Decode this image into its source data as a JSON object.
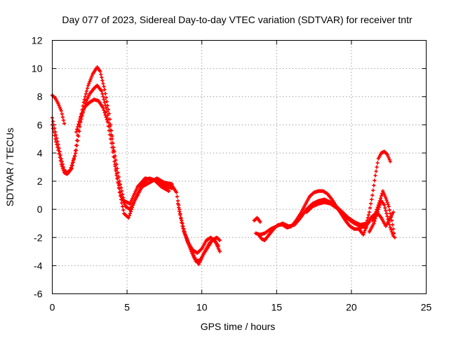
{
  "chart_data": {
    "type": "scatter",
    "title": "Day 077 of 2023, Sidereal Day-to-day VTEC variation (SDTVAR) for receiver tntr",
    "xlabel": "GPS time / hours",
    "ylabel": "SDTVAR / TECUs",
    "xlim": [
      0,
      25
    ],
    "ylim": [
      -6,
      12
    ],
    "xticks": [
      0,
      5,
      10,
      15,
      20,
      25
    ],
    "yticks": [
      -6,
      -4,
      -2,
      0,
      2,
      4,
      6,
      8,
      10,
      12
    ],
    "grid": true,
    "marker": "+",
    "color": "#ff0000",
    "series": [
      {
        "name": "trace-a",
        "x": [
          0.0,
          0.2,
          0.4,
          0.6,
          0.8,
          1.0,
          1.2,
          1.5,
          1.8,
          2.1,
          2.4,
          2.7,
          3.0,
          3.2,
          3.5,
          3.8,
          4.0,
          4.2,
          4.5,
          4.8,
          5.1,
          5.5,
          6.0,
          6.5,
          7.0,
          7.5,
          8.0
        ],
        "y": [
          6.5,
          5.5,
          4.6,
          3.6,
          2.8,
          2.6,
          2.8,
          3.8,
          6.0,
          7.6,
          8.8,
          9.6,
          10.1,
          9.8,
          8.5,
          6.8,
          5.2,
          3.2,
          1.2,
          -0.3,
          -0.6,
          0.6,
          1.8,
          2.2,
          2.0,
          1.7,
          1.5
        ]
      },
      {
        "name": "trace-b",
        "x": [
          0.0,
          0.2,
          0.4,
          0.6,
          0.8,
          1.0,
          1.3,
          1.6,
          1.9,
          2.2,
          2.5,
          2.8,
          3.0,
          3.3,
          3.6,
          3.9,
          4.2,
          4.5,
          4.8,
          5.2,
          5.7,
          6.2,
          6.8,
          7.3,
          7.8
        ],
        "y": [
          6.0,
          5.0,
          4.2,
          3.2,
          2.6,
          2.5,
          2.9,
          4.2,
          6.2,
          7.5,
          8.2,
          8.6,
          8.8,
          8.4,
          7.2,
          5.6,
          3.8,
          2.0,
          0.6,
          0.4,
          1.6,
          2.2,
          2.1,
          1.6,
          1.3
        ]
      },
      {
        "name": "trace-c",
        "x": [
          1.6,
          1.9,
          2.2,
          2.5,
          2.8,
          3.1,
          3.4,
          3.7,
          4.0,
          4.3,
          4.6,
          4.9,
          5.2,
          5.6,
          6.0,
          6.5,
          7.0,
          7.5,
          8.0
        ],
        "y": [
          5.5,
          6.6,
          7.3,
          7.6,
          7.8,
          7.7,
          7.2,
          6.2,
          4.4,
          2.4,
          1.0,
          0.2,
          0.0,
          0.8,
          1.6,
          1.9,
          2.2,
          1.9,
          1.8
        ]
      },
      {
        "name": "trace-d",
        "x": [
          0.0,
          0.2,
          0.4,
          0.6,
          0.8
        ],
        "y": [
          8.1,
          7.9,
          7.5,
          7.0,
          6.1
        ]
      },
      {
        "name": "trace-e",
        "x": [
          8.0,
          8.3,
          8.6,
          8.9,
          9.2,
          9.5,
          9.8,
          10.1,
          10.4,
          10.7,
          11.0,
          11.2
        ],
        "y": [
          1.7,
          1.2,
          -0.6,
          -1.8,
          -2.6,
          -3.4,
          -3.9,
          -3.2,
          -2.7,
          -2.2,
          -2.0,
          -2.2
        ]
      },
      {
        "name": "trace-f",
        "x": [
          8.4,
          8.7,
          9.0,
          9.3,
          9.6,
          9.9,
          10.2,
          10.5,
          10.8,
          11.1
        ],
        "y": [
          0.4,
          -1.2,
          -2.2,
          -3.0,
          -3.7,
          -3.6,
          -3.0,
          -2.4,
          -2.1,
          -2.6
        ]
      },
      {
        "name": "trace-g",
        "x": [
          8.8,
          9.1,
          9.4,
          9.7,
          10.0,
          10.3,
          10.6,
          10.9,
          11.2
        ],
        "y": [
          -1.6,
          -2.4,
          -2.9,
          -3.1,
          -2.8,
          -2.2,
          -2.0,
          -2.3,
          -3.0
        ]
      },
      {
        "name": "trace-h",
        "x": [
          13.8,
          14.0,
          14.2,
          14.5,
          14.8,
          15.1,
          15.4,
          15.7,
          16.0,
          16.3,
          16.6,
          16.9,
          17.2,
          17.5,
          17.8,
          18.1,
          18.4,
          18.7,
          19.0,
          19.3,
          19.6,
          19.9,
          20.2,
          20.5,
          20.8,
          21.0,
          21.2
        ],
        "y": [
          -1.8,
          -2.1,
          -2.2,
          -1.8,
          -1.4,
          -1.1,
          -1.1,
          -1.3,
          -1.2,
          -0.8,
          -0.3,
          0.3,
          0.9,
          1.2,
          1.3,
          1.3,
          1.1,
          0.7,
          0.2,
          -0.3,
          -0.8,
          -1.2,
          -1.4,
          -1.4,
          -1.2,
          -1.0,
          -0.9
        ]
      },
      {
        "name": "trace-i",
        "x": [
          13.6,
          13.9,
          14.2,
          14.6,
          15.0,
          15.4,
          15.8,
          16.2,
          16.6,
          17.0,
          17.4,
          17.8,
          18.2,
          18.6,
          19.0,
          19.4,
          19.8,
          20.2,
          20.6,
          21.0
        ],
        "y": [
          -1.7,
          -1.8,
          -1.7,
          -1.4,
          -1.2,
          -1.0,
          -1.2,
          -1.1,
          -0.6,
          0.0,
          0.4,
          0.6,
          0.7,
          0.5,
          0.2,
          -0.2,
          -0.6,
          -0.9,
          -1.1,
          -1.0
        ]
      },
      {
        "name": "trace-j",
        "x": [
          17.0,
          17.4,
          17.8,
          18.2,
          18.6,
          19.0,
          19.4,
          19.8,
          20.2,
          20.6,
          21.0
        ],
        "y": [
          -0.2,
          0.2,
          0.4,
          0.5,
          0.4,
          0.1,
          -0.3,
          -0.7,
          -1.0,
          -1.2,
          -1.3
        ]
      },
      {
        "name": "trace-k",
        "x": [
          13.5,
          13.7,
          13.9
        ],
        "y": [
          -0.8,
          -0.6,
          -0.9
        ]
      },
      {
        "name": "trace-l",
        "x": [
          21.0,
          21.2,
          21.4,
          21.6,
          21.8,
          22.0,
          22.2,
          22.4,
          22.6
        ],
        "y": [
          -1.0,
          -0.2,
          1.0,
          2.4,
          3.6,
          4.0,
          4.1,
          3.9,
          3.4
        ]
      },
      {
        "name": "trace-m",
        "x": [
          20.5,
          20.8,
          21.0,
          21.3,
          21.6,
          21.9,
          22.1,
          22.3,
          22.5,
          22.7,
          22.9
        ],
        "y": [
          -1.4,
          -1.8,
          -1.2,
          -0.6,
          -0.3,
          0.6,
          1.3,
          0.8,
          0.2,
          -0.8,
          -2.0
        ]
      },
      {
        "name": "trace-n",
        "x": [
          21.2,
          21.5,
          21.8,
          22.0,
          22.2,
          22.4,
          22.6,
          22.8
        ],
        "y": [
          -1.6,
          -1.0,
          0.0,
          0.6,
          0.3,
          -0.5,
          -1.3,
          -1.9
        ]
      },
      {
        "name": "trace-o",
        "x": [
          21.4,
          21.7,
          22.0,
          22.3,
          22.6,
          22.8
        ],
        "y": [
          -0.8,
          -0.2,
          -0.6,
          -1.2,
          -0.6,
          -0.2
        ]
      }
    ]
  }
}
